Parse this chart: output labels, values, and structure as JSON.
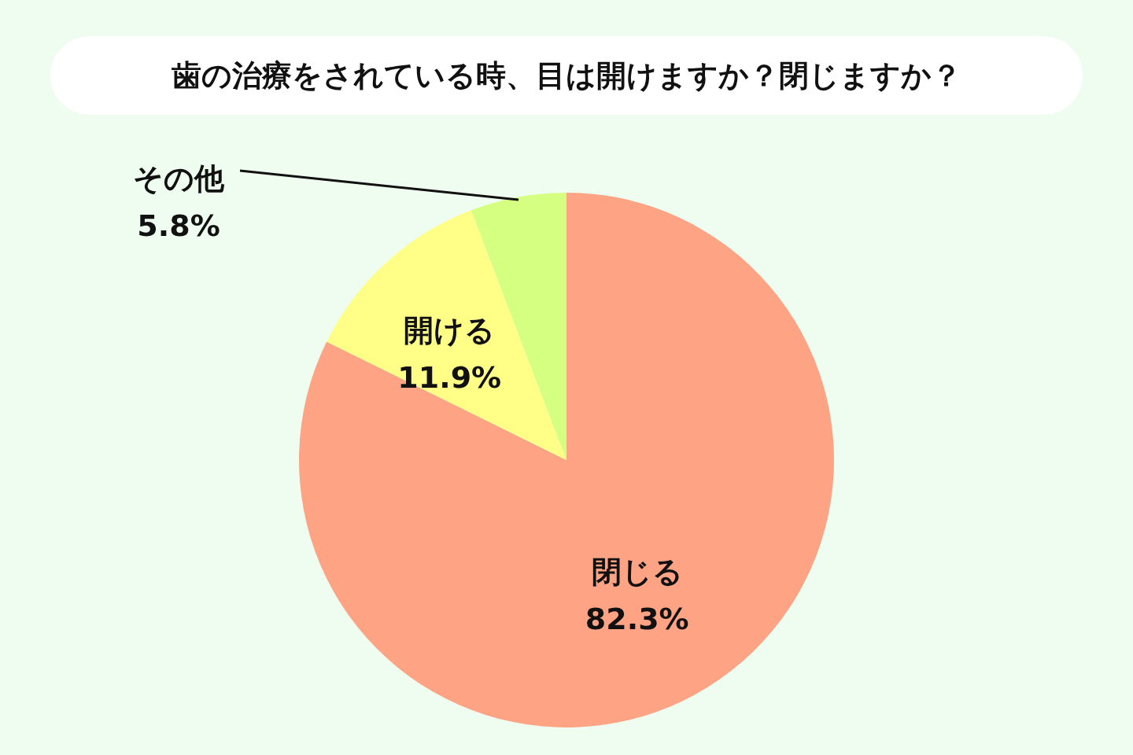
{
  "chart_data": {
    "type": "pie",
    "title": "歯の治療をされている時、目は開けますか？閉じますか？",
    "categories": [
      "閉じる",
      "開ける",
      "その他"
    ],
    "values": [
      82.3,
      11.9,
      5.8
    ],
    "value_labels": [
      "82.3%",
      "11.9%",
      "5.8%"
    ],
    "colors": [
      "#ffa385",
      "#ffff88",
      "#d4ff80"
    ]
  }
}
